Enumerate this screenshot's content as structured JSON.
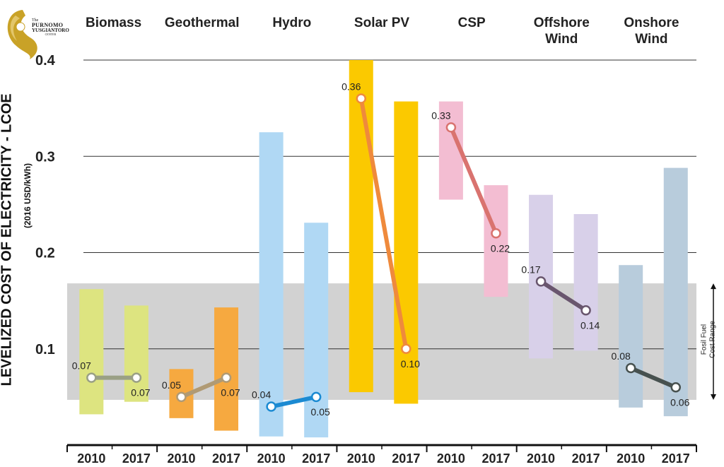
{
  "logo": {
    "the": "The",
    "name_line1": "PURNOMO",
    "name_line2": "YUSGIANTORO",
    "center": "CENTER"
  },
  "ylabel": "LEVELIZED COST OF ELECTRICITY - LCOE",
  "yunit": "(2016 USD/kWh)",
  "fossil_label": {
    "line1": "Fosil Fuel",
    "line2": "Cost Range"
  },
  "chart_data": {
    "type": "bar",
    "ylim": [
      0,
      0.4
    ],
    "yticks": [
      "0.1",
      "0.2",
      "0.3",
      "0.4"
    ],
    "fossil_range": [
      0.047,
      0.168
    ],
    "groups": [
      {
        "name": "Biomass",
        "color": "#dde480",
        "line": "#9aa085",
        "years": [
          "2010",
          "2017"
        ],
        "range_2010": [
          0.032,
          0.162
        ],
        "range_2017": [
          0.045,
          0.145
        ],
        "avg": [
          0.07,
          0.07
        ],
        "avg_labels": [
          "0.07",
          "0.07"
        ]
      },
      {
        "name": "Geothermal",
        "color": "#f6a940",
        "line": "#b09a74",
        "years": [
          "2010",
          "2017"
        ],
        "range_2010": [
          0.028,
          0.079
        ],
        "range_2017": [
          0.015,
          0.143
        ],
        "avg": [
          0.05,
          0.07
        ],
        "avg_labels": [
          "0.05",
          "0.07"
        ]
      },
      {
        "name": "Hydro",
        "color": "#b0d8f4",
        "line": "#1b8ad2",
        "years": [
          "2010",
          "2017"
        ],
        "range_2010": [
          0.009,
          0.325
        ],
        "range_2017": [
          0.008,
          0.231
        ],
        "avg": [
          0.04,
          0.05
        ],
        "avg_labels": [
          "0.04",
          "0.05"
        ]
      },
      {
        "name": "Solar PV",
        "color": "#fbc900",
        "line": "#ef8a3c",
        "years": [
          "2010",
          "2017"
        ],
        "range_2010": [
          0.055,
          0.4
        ],
        "range_2017": [
          0.043,
          0.357
        ],
        "avg": [
          0.36,
          0.1
        ],
        "avg_labels": [
          "0.36",
          "0.10"
        ]
      },
      {
        "name": "CSP",
        "color": "#f3bdd2",
        "line": "#d9736f",
        "years": [
          "2010",
          "2017"
        ],
        "range_2010": [
          0.255,
          0.357
        ],
        "range_2017": [
          0.154,
          0.27
        ],
        "avg": [
          0.33,
          0.22
        ],
        "avg_labels": [
          "0.33",
          "0.22"
        ]
      },
      {
        "name": "Offshore Wind",
        "color": "#d8d0e9",
        "line": "#69566e",
        "years": [
          "2010",
          "2017"
        ],
        "range_2010": [
          0.09,
          0.26
        ],
        "range_2017": [
          0.098,
          0.24
        ],
        "avg": [
          0.17,
          0.14
        ],
        "avg_labels": [
          "0.17",
          "0.14"
        ]
      },
      {
        "name": "Onshore Wind",
        "color": "#b8ccdc",
        "line": "#47514f",
        "years": [
          "2010",
          "2017"
        ],
        "range_2010": [
          0.039,
          0.187
        ],
        "range_2017": [
          0.03,
          0.288
        ],
        "avg": [
          0.08,
          0.06
        ],
        "avg_labels": [
          "0.08",
          "0.06"
        ]
      }
    ]
  }
}
